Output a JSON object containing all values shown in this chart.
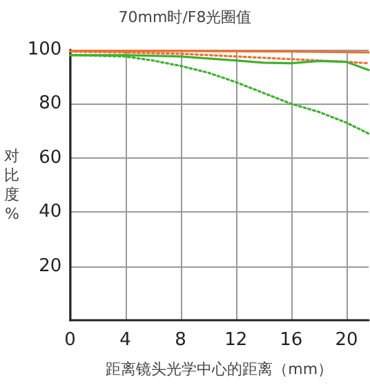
{
  "chart_data": {
    "type": "line",
    "title": "70mm时/F8光圈值",
    "xlabel": "距离镜头光学中心的距离（mm）",
    "ylabel": "对比度%",
    "xlim": [
      0,
      21.6
    ],
    "ylim": [
      0,
      100
    ],
    "xticks": [
      0,
      4,
      8,
      12,
      16,
      20
    ],
    "yticks": [
      20,
      40,
      60,
      80,
      100
    ],
    "grid": true,
    "marker": "none",
    "series": [
      {
        "color": "#f07030",
        "line_style": "solid",
        "x": [
          0,
          8,
          16,
          21.6
        ],
        "values": [
          99.5,
          99.5,
          99.3,
          99
        ]
      },
      {
        "color": "#f07030",
        "line_style": "dotted",
        "x": [
          0,
          4,
          8,
          12,
          16,
          20,
          21.6
        ],
        "values": [
          99.3,
          99,
          98.5,
          97.5,
          96.5,
          95.5,
          95
        ]
      },
      {
        "color": "#40b030",
        "line_style": "solid",
        "x": [
          0,
          4,
          8,
          12,
          14,
          16,
          18,
          20,
          21.6
        ],
        "values": [
          98,
          98,
          97.5,
          96,
          95.2,
          95,
          95.8,
          95.5,
          92.5
        ]
      },
      {
        "color": "#40b030",
        "line_style": "dotted",
        "x": [
          0,
          4,
          6,
          8,
          10,
          12,
          14,
          16,
          18,
          20,
          21.6
        ],
        "values": [
          98,
          97.5,
          96,
          94,
          91.5,
          88,
          84,
          80,
          77,
          73,
          69
        ]
      }
    ]
  }
}
